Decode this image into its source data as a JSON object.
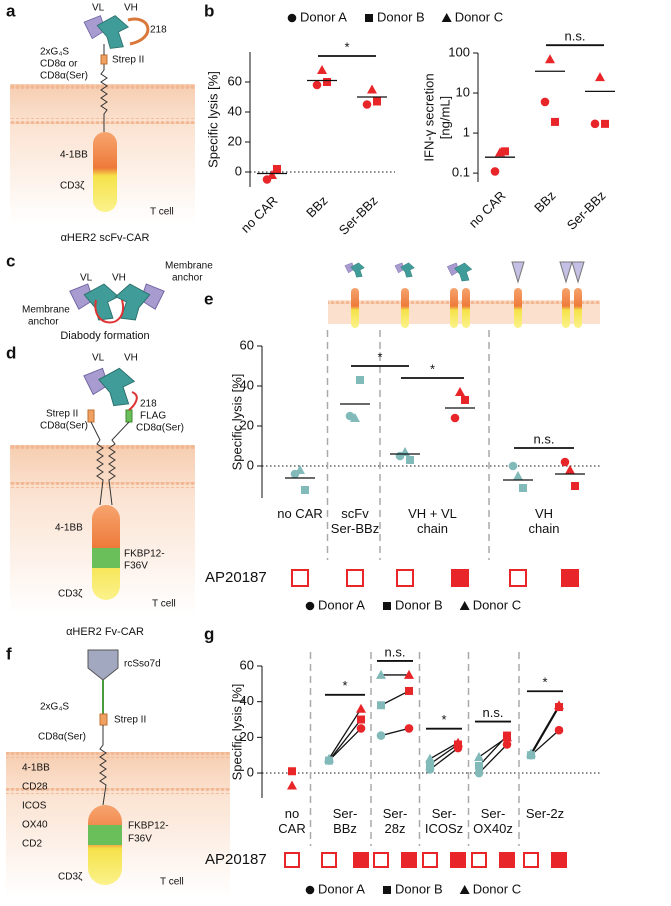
{
  "panels": [
    "a",
    "b",
    "c",
    "d",
    "e",
    "f",
    "g"
  ],
  "diagram_a": {
    "vl": "VL",
    "vh": "VH",
    "linker": "218",
    "g4s": "2xG₄S",
    "strep": "Strep II",
    "hinge": [
      "CD8α or",
      "CD8α(Ser)"
    ],
    "costim": "4-1BB",
    "cd3": "CD3ζ",
    "cell": "T cell",
    "caption": "αHER2 scFv-CAR"
  },
  "diagram_c": {
    "vl": "VL",
    "vh": "VH",
    "anchor_right": [
      "Membrane",
      "anchor"
    ],
    "anchor_left": [
      "Membrane",
      "anchor"
    ],
    "caption": "Diabody formation"
  },
  "diagram_d": {
    "vl": "VL",
    "vh": "VH",
    "strep": "Strep II",
    "hinge_left": "CD8α(Ser)",
    "linker": "218",
    "flag": "FLAG",
    "hinge_right": "CD8α(Ser)",
    "costim": "4-1BB",
    "switch": [
      "FKBP12-",
      "F36V"
    ],
    "cd3": "CD3ζ",
    "cell": "T cell",
    "caption": "αHER2 Fv-CAR"
  },
  "diagram_f": {
    "binder": "rcSso7d",
    "g4s": "2xG₄S",
    "strep": "Strep II",
    "hinge": "CD8α(Ser)",
    "costims": [
      "4-1BB",
      "CD28",
      "ICOS",
      "OX40",
      "CD2"
    ],
    "switch": [
      "FKBP12-",
      "F36V"
    ],
    "cd3": "CD3ζ",
    "cell": "T cell"
  },
  "chart_data": [
    {
      "type": "strip",
      "ylabel": [
        "Specific lysis [%]"
      ],
      "categories": [
        "no CAR",
        "BBz",
        "Ser-BBz"
      ],
      "color": "#e8262a",
      "series": [
        {
          "name": "Donor A",
          "marker": "circle",
          "values": [
            -5,
            58,
            45
          ]
        },
        {
          "name": "Donor B",
          "marker": "square",
          "values": [
            2,
            60,
            47
          ]
        },
        {
          "name": "Donor C",
          "marker": "triangle",
          "values": [
            -2,
            68,
            55
          ]
        }
      ],
      "means": [
        -1,
        61,
        50
      ],
      "ylim": [
        -10,
        80
      ],
      "yticks": [
        0,
        20,
        40,
        60
      ],
      "zero_line": true,
      "brackets": [
        {
          "between": [
            1,
            2
          ],
          "label": "*"
        }
      ],
      "legend": "top"
    },
    {
      "type": "strip",
      "ylabel": [
        "IFN-γ secretion",
        "[ng/mL]"
      ],
      "categories": [
        "no CAR",
        "BBz",
        "Ser-BBz"
      ],
      "color": "#e8262a",
      "series": [
        {
          "marker": "circle",
          "values": [
            0.11,
            6,
            1.7
          ]
        },
        {
          "marker": "square",
          "values": [
            0.35,
            1.9,
            1.7
          ]
        },
        {
          "marker": "triangle",
          "values": [
            0.33,
            70,
            25
          ]
        }
      ],
      "means": [
        0.25,
        35,
        11
      ],
      "ylim": [
        0.06,
        100
      ],
      "yticks": [
        0.1,
        1,
        10,
        100
      ],
      "log": true,
      "brackets": [
        {
          "between": [
            1,
            2
          ],
          "label": "n.s."
        }
      ]
    },
    {
      "type": "strip",
      "ylabel": [
        "Specific lysis [%]"
      ],
      "categories": [
        "no CAR",
        "scFv Ser-BBz",
        "VH + VL chain",
        null,
        "VH chain",
        null
      ],
      "point_colors": [
        "#82b9b9",
        "#82b9b9",
        "#82b9b9",
        "#e8262a",
        "#82b9b9",
        "#e8262a"
      ],
      "series": [
        {
          "name": "Donor A",
          "marker": "circle",
          "values": [
            -4,
            25,
            5,
            24,
            0,
            2
          ]
        },
        {
          "name": "Donor B",
          "marker": "square",
          "values": [
            -12,
            43,
            3,
            33,
            -11,
            -10
          ]
        },
        {
          "name": "Donor C",
          "marker": "triangle",
          "values": [
            -2,
            24,
            7,
            37,
            -5,
            -2
          ]
        }
      ],
      "means": [
        -6,
        31,
        6,
        29,
        -7,
        -4
      ],
      "ylim": [
        -16,
        60
      ],
      "yticks": [
        0,
        20,
        40,
        60
      ],
      "zero_line": true,
      "brackets": [
        {
          "between": [
            1,
            2
          ],
          "label": "*"
        },
        {
          "between": [
            2,
            3
          ],
          "label": "*"
        },
        {
          "between": [
            4,
            5
          ],
          "label": "n.s."
        }
      ],
      "treatment_label": "AP20187",
      "treatment": [
        false,
        false,
        false,
        true,
        false,
        true
      ],
      "legend": "bottom"
    },
    {
      "type": "strip",
      "ylabel": [
        "Specific lysis [%]"
      ],
      "categories": [
        "no CAR",
        "Ser-BBz",
        null,
        "Ser-28z",
        null,
        "Ser-ICOSz",
        null,
        "Ser-OX40z",
        null,
        "Ser-2z",
        null
      ],
      "point_colors": [
        "#e8262a",
        "#82b9b9",
        "#e8262a",
        "#82b9b9",
        "#e8262a",
        "#82b9b9",
        "#e8262a",
        "#82b9b9",
        "#e8262a",
        "#82b9b9",
        "#e8262a"
      ],
      "series": [
        {
          "name": "Donor A",
          "marker": "circle",
          "values": [
            null,
            7,
            25,
            21,
            25,
            2,
            14,
            0,
            16,
            10,
            24
          ]
        },
        {
          "name": "Donor B",
          "marker": "square",
          "values": [
            1,
            7,
            30,
            38,
            46,
            5,
            16,
            4,
            21,
            10,
            37
          ]
        },
        {
          "name": "Donor C",
          "marker": "triangle",
          "values": [
            -7,
            8,
            36,
            55,
            55,
            8,
            17,
            9,
            20,
            11,
            38
          ]
        }
      ],
      "paired": true,
      "ylim": [
        -14,
        60
      ],
      "yticks": [
        0,
        20,
        40,
        60
      ],
      "zero_line": true,
      "brackets": [
        {
          "between": [
            1,
            2
          ],
          "label": "*"
        },
        {
          "between": [
            3,
            4
          ],
          "label": "n.s."
        },
        {
          "between": [
            5,
            6
          ],
          "label": "*"
        },
        {
          "between": [
            7,
            8
          ],
          "label": "n.s."
        },
        {
          "between": [
            9,
            10
          ],
          "label": "*"
        }
      ],
      "treatment_label": "AP20187",
      "treatment": [
        false,
        false,
        true,
        false,
        true,
        false,
        true,
        false,
        true,
        false,
        true
      ],
      "legend": "bottom"
    }
  ]
}
